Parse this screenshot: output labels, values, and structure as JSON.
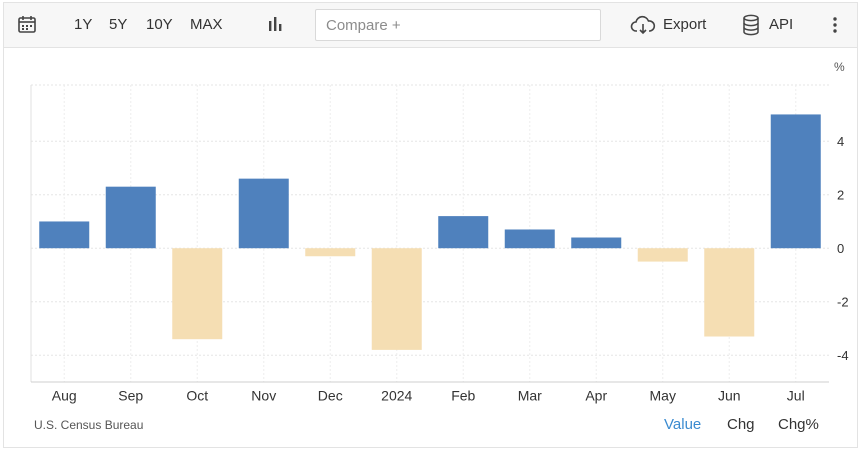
{
  "toolbar": {
    "icons": {
      "calendar": "calendar-icon",
      "chart_type": "bar-chart-icon",
      "export": "cloud-download-icon",
      "api": "database-icon",
      "more": "kebab-menu-icon"
    },
    "ranges": [
      "1Y",
      "5Y",
      "10Y",
      "MAX"
    ],
    "compare_placeholder": "Compare +",
    "export_label": "Export",
    "api_label": "API"
  },
  "footer": {
    "source": "U.S. Census Bureau",
    "tabs": [
      {
        "label": "Value",
        "active": true
      },
      {
        "label": "Chg",
        "active": false
      },
      {
        "label": "Chg%",
        "active": false
      }
    ]
  },
  "colors": {
    "positive": "#4f81bd",
    "negative": "#f5deb3",
    "active_tab": "#3b8bd0"
  },
  "chart_data": {
    "type": "bar",
    "categories": [
      "Aug",
      "Sep",
      "Oct",
      "Nov",
      "Dec",
      "2024",
      "Feb",
      "Mar",
      "Apr",
      "May",
      "Jun",
      "Jul"
    ],
    "values": [
      1.0,
      2.3,
      -3.4,
      2.6,
      -0.3,
      -3.8,
      1.2,
      0.7,
      0.4,
      -0.5,
      -3.3,
      5.0
    ],
    "unit_label": "%",
    "yticks": [
      4,
      2,
      0,
      -2,
      -4
    ],
    "ylim": [
      -5.0,
      6.1
    ],
    "grid": true,
    "legend": "none"
  }
}
